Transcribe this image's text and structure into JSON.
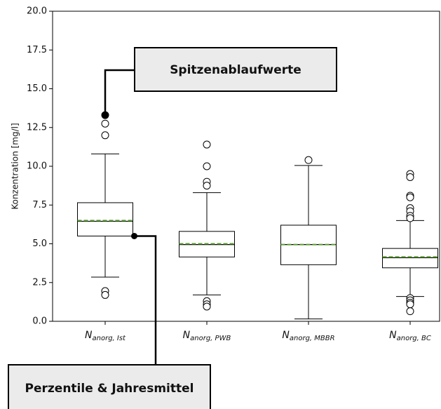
{
  "chart_data": {
    "type": "box",
    "y_label": "Konzentration [mg/l]",
    "ylim": [
      0,
      20
    ],
    "yticks": [
      {
        "value": 0,
        "label": "0.0"
      },
      2.5,
      {
        "value": 5,
        "label": "5.0"
      },
      7.5,
      {
        "value": 10,
        "label": "10.0"
      },
      12.5,
      {
        "value": 15,
        "label": "15.0"
      },
      17.5,
      {
        "value": 20,
        "label": "20.0"
      }
    ],
    "categories": [
      {
        "base": "N",
        "sub": "anorg, Ist"
      },
      {
        "base": "N",
        "sub": "anorg, PWB"
      },
      {
        "base": "N",
        "sub": "anorg, MBBR"
      },
      {
        "base": "N",
        "sub": "anorg, BC"
      }
    ],
    "mean_color": "#5a9e2f",
    "boxes": [
      {
        "whisker_low": 2.85,
        "q1": 5.5,
        "median": 6.45,
        "mean": 6.5,
        "q3": 7.65,
        "whisker_high": 10.8,
        "outliers": [
          12.0,
          12.75,
          13.3,
          1.95,
          1.7
        ]
      },
      {
        "whisker_low": 1.7,
        "q1": 4.15,
        "median": 4.95,
        "mean": 5.0,
        "q3": 5.8,
        "whisker_high": 8.3,
        "outliers": [
          11.4,
          10.0,
          9.0,
          8.75,
          1.3,
          1.1,
          0.95
        ]
      },
      {
        "whisker_low": 0.15,
        "q1": 3.65,
        "median": 4.95,
        "mean": 4.95,
        "q3": 6.2,
        "whisker_high": 10.05,
        "outliers": [
          10.4
        ]
      },
      {
        "whisker_low": 1.6,
        "q1": 3.45,
        "median": 4.1,
        "mean": 4.15,
        "q3": 4.7,
        "whisker_high": 6.5,
        "outliers": [
          9.5,
          9.3,
          8.1,
          8.0,
          7.3,
          7.1,
          6.8,
          6.65,
          1.5,
          1.35,
          1.2,
          1.1,
          0.65
        ]
      }
    ],
    "annotations": [
      {
        "text": "Spitzenablaufwerte",
        "box": 0,
        "outlier": 2
      },
      {
        "text": "Perzentile & Jahresmittel",
        "box": 0,
        "stat": "q1"
      }
    ]
  }
}
